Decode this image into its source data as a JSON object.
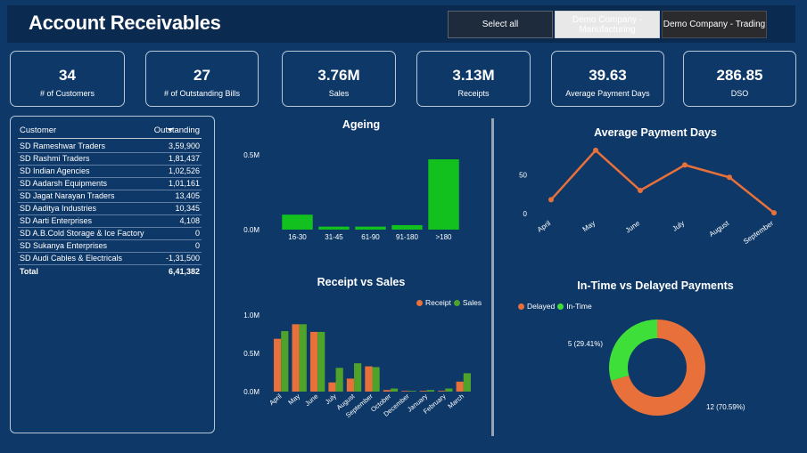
{
  "header": {
    "title": "Account Receivables",
    "slicer": [
      {
        "label": "Select all"
      },
      {
        "label": "Demo Company - Manufacturing"
      },
      {
        "label": "Demo Company - Trading"
      }
    ]
  },
  "kpis": [
    {
      "value": "34",
      "label": "# of Customers"
    },
    {
      "value": "27",
      "label": "# of Outstanding Bills"
    },
    {
      "value": "3.76M",
      "label": "Sales"
    },
    {
      "value": "3.13M",
      "label": "Receipts"
    },
    {
      "value": "39.63",
      "label": "Average Payment Days"
    },
    {
      "value": "286.85",
      "label": "DSO"
    }
  ],
  "table": {
    "col_customer": "Customer",
    "col_outstanding": "Outstanding",
    "rows": [
      {
        "customer": "SD Rameshwar Traders",
        "outstanding": "3,59,900"
      },
      {
        "customer": "SD Rashmi Traders",
        "outstanding": "1,81,437"
      },
      {
        "customer": "SD Indian Agencies",
        "outstanding": "1,02,526"
      },
      {
        "customer": "SD Aadarsh Equipments",
        "outstanding": "1,01,161"
      },
      {
        "customer": "SD Jagat Narayan Traders",
        "outstanding": "13,405"
      },
      {
        "customer": "SD Aaditya Industries",
        "outstanding": "10,345"
      },
      {
        "customer": "SD Aarti Enterprises",
        "outstanding": "4,108"
      },
      {
        "customer": "SD A.B.Cold Storage & Ice Factory",
        "outstanding": "0"
      },
      {
        "customer": "SD Sukanya Enterprises",
        "outstanding": "0"
      },
      {
        "customer": "SD Audi Cables & Electricals",
        "outstanding": "-1,31,500"
      }
    ],
    "total_label": "Total",
    "total_value": "6,41,382"
  },
  "colors": {
    "background": "#0e3867",
    "green": "#12c11e",
    "orange": "#e8703a",
    "receipt": "#e8703a",
    "sales": "#4fa32b",
    "intime": "#3fdf3a"
  },
  "chart_data": [
    {
      "type": "bar",
      "title": "Ageing",
      "categories": [
        "16-30",
        "31-45",
        "61-90",
        "91-180",
        ">180"
      ],
      "values": [
        0.1,
        0.02,
        0.02,
        0.03,
        0.47
      ],
      "ytick_labels": [
        "0.0M",
        "0.5M"
      ],
      "yticks": [
        0,
        0.5
      ],
      "ylim": [
        0,
        0.5
      ],
      "grid": false
    },
    {
      "type": "line",
      "title": "Average Payment Days",
      "categories": [
        "April",
        "May",
        "June",
        "July",
        "August",
        "September"
      ],
      "values": [
        18,
        82,
        30,
        63,
        47,
        1
      ],
      "ytick_labels": [
        "0",
        "50"
      ],
      "yticks": [
        0,
        50
      ],
      "ylim": [
        0,
        90
      ],
      "grid": false
    },
    {
      "type": "bar",
      "title": "Receipt vs Sales",
      "categories": [
        "April",
        "May",
        "June",
        "July",
        "August",
        "September",
        "October",
        "December",
        "January",
        "February",
        "March"
      ],
      "series": [
        {
          "name": "Receipt",
          "values": [
            0.69,
            0.88,
            0.78,
            0.12,
            0.17,
            0.33,
            0.02,
            0.0,
            0.01,
            0.01,
            0.13
          ]
        },
        {
          "name": "Sales",
          "values": [
            0.79,
            0.88,
            0.78,
            0.31,
            0.37,
            0.32,
            0.04,
            0.01,
            0.02,
            0.04,
            0.24
          ]
        }
      ],
      "ytick_labels": [
        "0.0M",
        "0.5M",
        "1.0M"
      ],
      "yticks": [
        0,
        0.5,
        1.0
      ],
      "ylim": [
        0,
        1.0
      ],
      "legend": "top-right",
      "grid": false
    },
    {
      "type": "pie",
      "title": "In-Time vs Delayed Payments",
      "categories": [
        "Delayed",
        "In-Time"
      ],
      "values": [
        12,
        5
      ],
      "data_labels": [
        "12 (70.59%)",
        "5 (29.41%)"
      ],
      "legend": "top-left",
      "donut": true
    }
  ]
}
